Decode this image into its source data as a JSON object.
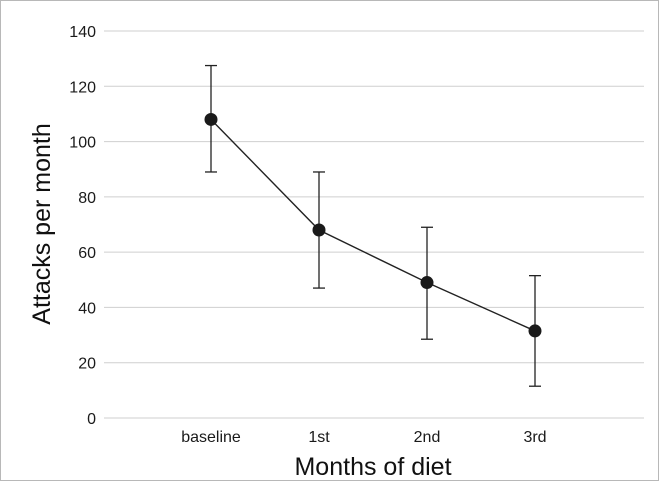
{
  "chart_data": {
    "type": "line",
    "title": "",
    "xlabel": "Months of diet",
    "ylabel": "Attacks per month",
    "categories": [
      "baseline",
      "1st",
      "2nd",
      "3rd"
    ],
    "series": [
      {
        "values": [
          108,
          68,
          49,
          31.5
        ],
        "error_low": [
          89,
          47,
          28.5,
          11.5
        ],
        "error_high": [
          127.5,
          89,
          69,
          51.5
        ]
      }
    ],
    "ylim": [
      0,
      140
    ],
    "yticks": [
      0,
      20,
      40,
      60,
      80,
      100,
      120,
      140
    ],
    "grid": true,
    "legend": "none",
    "colors": {
      "marker": "#1a1a1a",
      "grid": "#cfcfcf",
      "frame": "#b8b8b8"
    }
  }
}
